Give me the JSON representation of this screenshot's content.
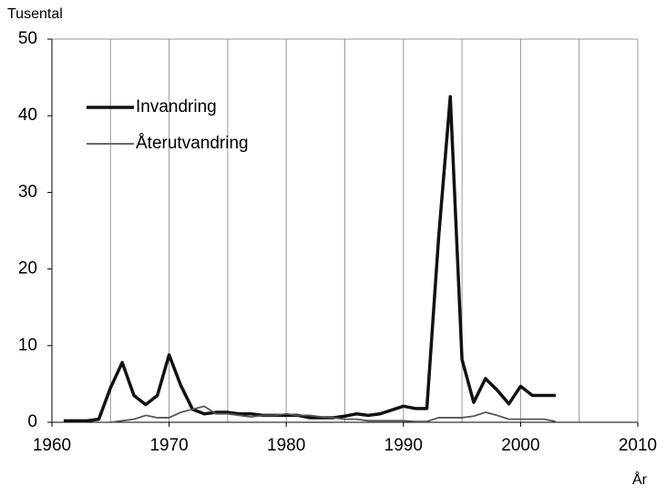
{
  "chart_data": {
    "type": "line",
    "y_label": "Tusental",
    "x_label": "År",
    "x": [
      1961,
      1962,
      1963,
      1964,
      1965,
      1966,
      1967,
      1968,
      1969,
      1970,
      1971,
      1972,
      1973,
      1974,
      1975,
      1976,
      1977,
      1978,
      1979,
      1980,
      1981,
      1982,
      1983,
      1984,
      1985,
      1986,
      1987,
      1988,
      1989,
      1990,
      1991,
      1992,
      1993,
      1994,
      1995,
      1996,
      1997,
      1998,
      1999,
      2000,
      2001,
      2002,
      2003
    ],
    "series": [
      {
        "name": "Invandring",
        "color": "#111111",
        "values": [
          0.2,
          0.2,
          0.2,
          0.4,
          4.5,
          7.8,
          3.5,
          2.3,
          3.5,
          8.8,
          4.8,
          1.7,
          1.1,
          1.3,
          1.3,
          1.1,
          1.1,
          0.9,
          0.9,
          0.9,
          0.9,
          0.6,
          0.6,
          0.6,
          0.8,
          1.1,
          0.9,
          1.1,
          1.6,
          2.1,
          1.8,
          1.8,
          24,
          42.5,
          8.2,
          2.6,
          5.7,
          4.2,
          2.4,
          4.7,
          3.5,
          3.5,
          3.5
        ]
      },
      {
        "name": "Återutvandring",
        "color": "#555555",
        "values": [
          null,
          null,
          null,
          null,
          0,
          0.2,
          0.4,
          0.9,
          0.6,
          0.6,
          1.3,
          1.7,
          2.1,
          1.1,
          1.1,
          0.9,
          0.7,
          0.9,
          0.9,
          1.1,
          0.9,
          0.9,
          0.7,
          0.6,
          0.4,
          0.4,
          0.2,
          0.2,
          0.2,
          0.2,
          0.1,
          0.1,
          0.6,
          0.6,
          0.6,
          0.8,
          1.3,
          0.9,
          0.4,
          0.4,
          0.4,
          0.4,
          0.1
        ]
      }
    ],
    "xlim": [
      1960,
      2010
    ],
    "xticks": [
      1960,
      1970,
      1980,
      1990,
      2000,
      2010
    ],
    "xgrid": [
      1965,
      1970,
      1975,
      1980,
      1985,
      1990,
      1995,
      2000,
      2005
    ],
    "ylim": [
      0,
      50
    ],
    "yticks": [
      0,
      10,
      20,
      30,
      40,
      50
    ],
    "legend": "upper left"
  }
}
